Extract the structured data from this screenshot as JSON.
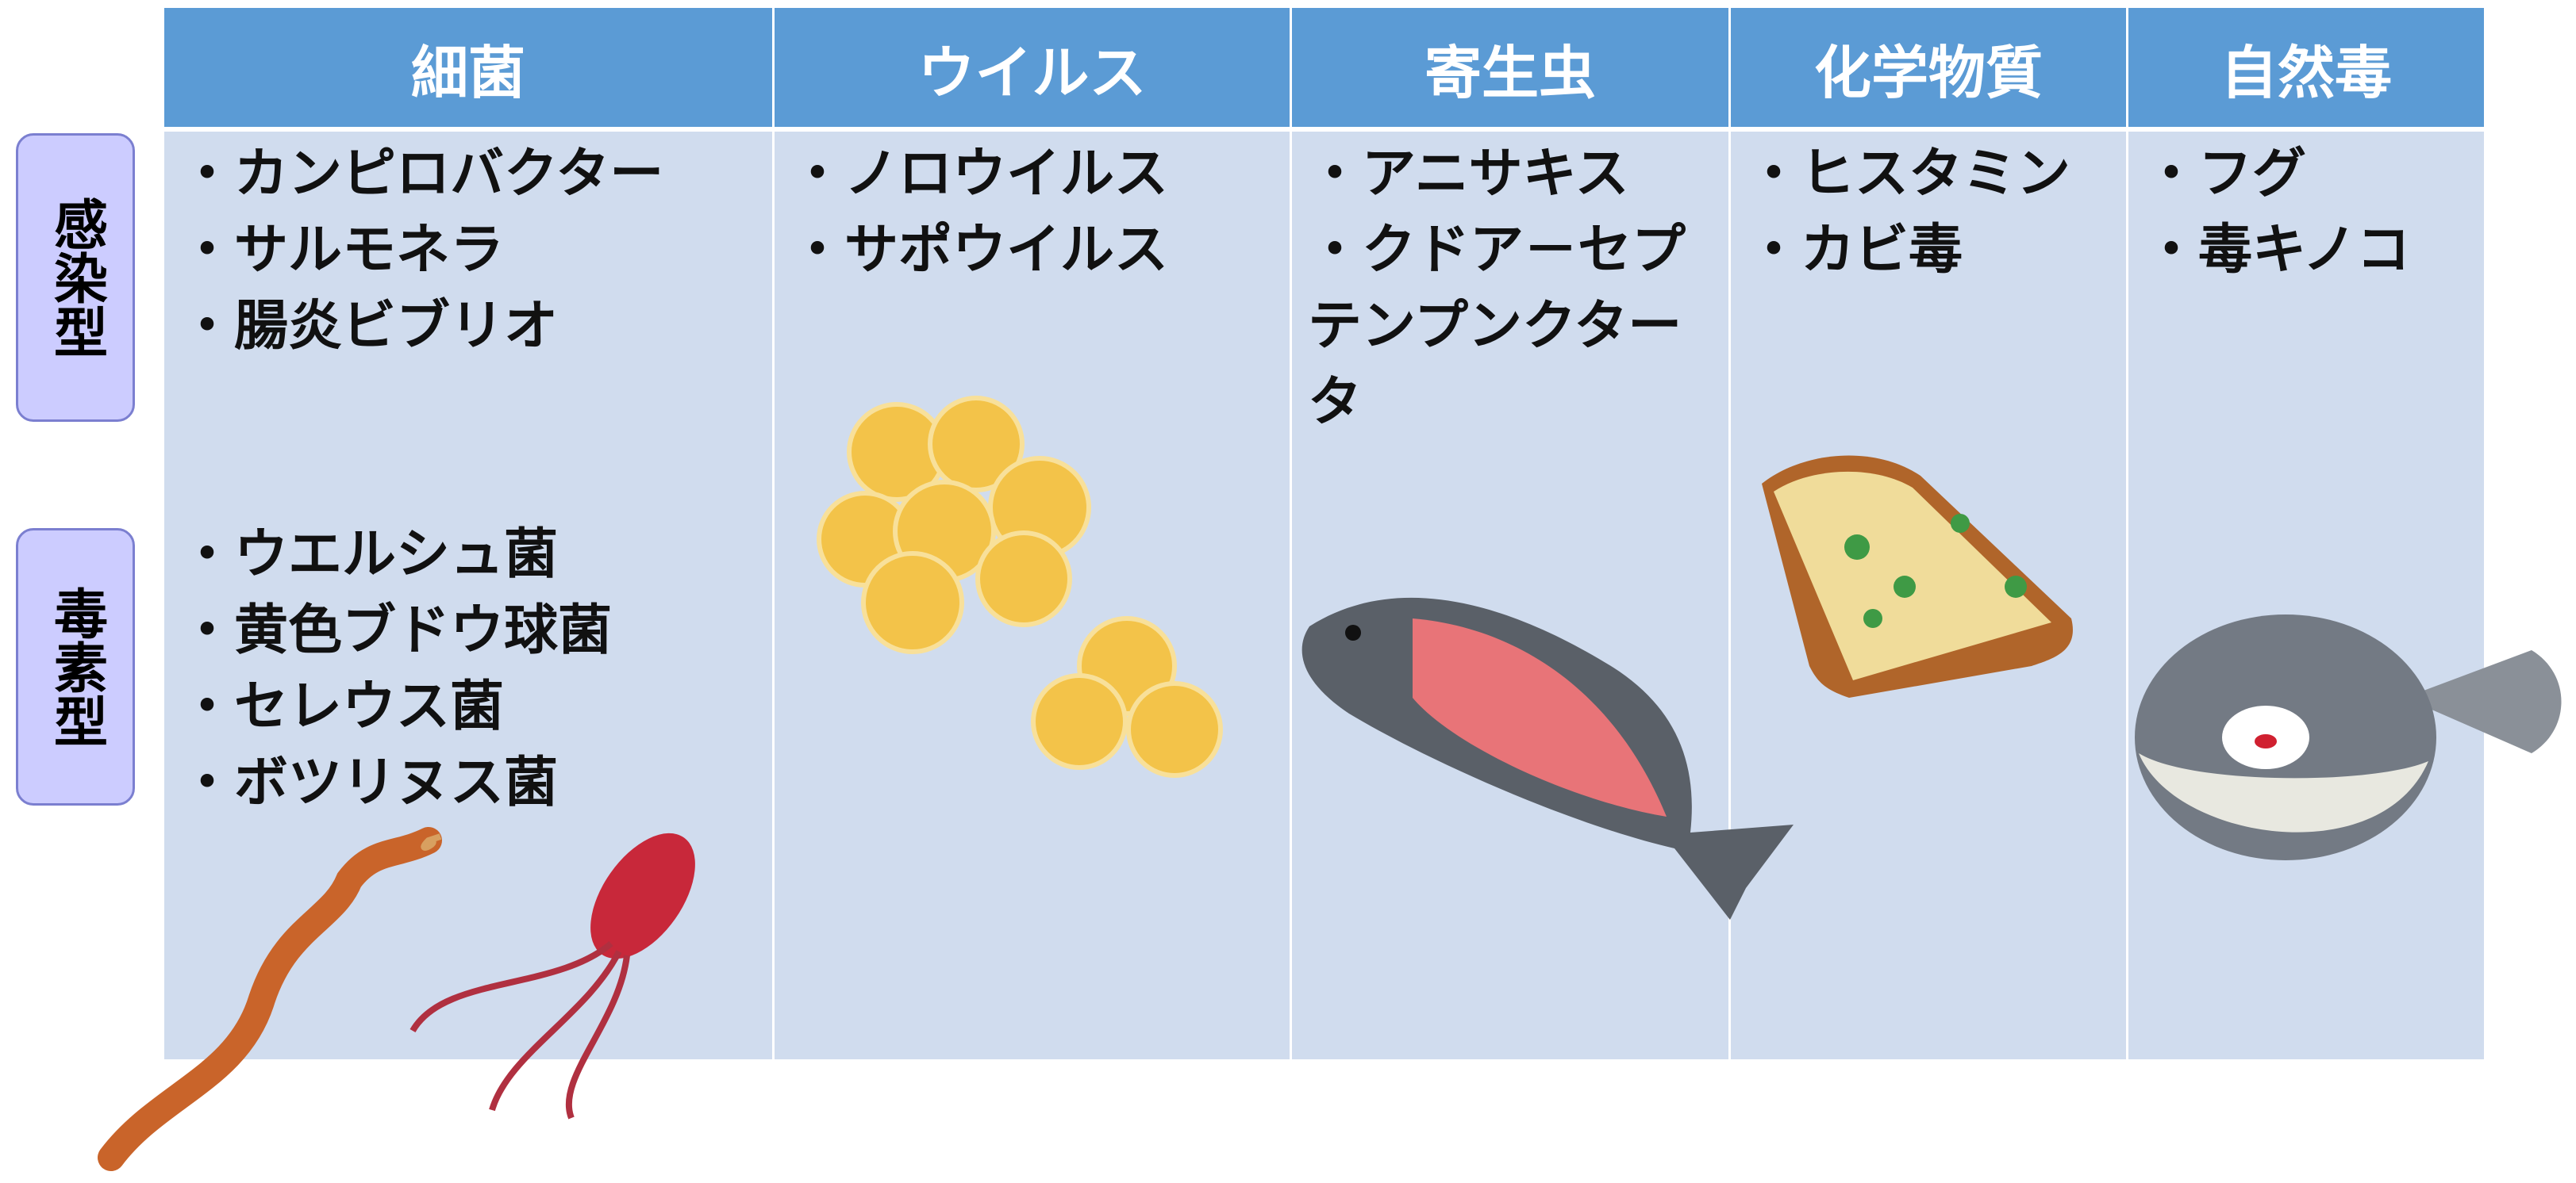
{
  "row_labels": [
    "感染型",
    "毒素型"
  ],
  "table": {
    "columns": [
      {
        "name": "細菌",
        "items": [
          "・カンピロバクター",
          "・サルモネラ",
          "・腸炎ビブリオ"
        ],
        "toxin_items": [
          "・ウエルシュ菌",
          "・黄色ブドウ球菌",
          "・セレウス菌",
          "・ボツリヌス菌"
        ]
      },
      {
        "name": "ウイルス",
        "items": [
          "・ノロウイルス",
          "・サポウイルス"
        ]
      },
      {
        "name": "寄生虫",
        "items": [
          "・アニサキス",
          "・クドア－セプテンプンクタータ"
        ]
      },
      {
        "name": "化学物質",
        "items": [
          "・ヒスタミン",
          "・カビ毒"
        ]
      },
      {
        "name": "自然毒",
        "items": [
          "・フグ",
          "・毒キノコ"
        ]
      }
    ]
  }
}
